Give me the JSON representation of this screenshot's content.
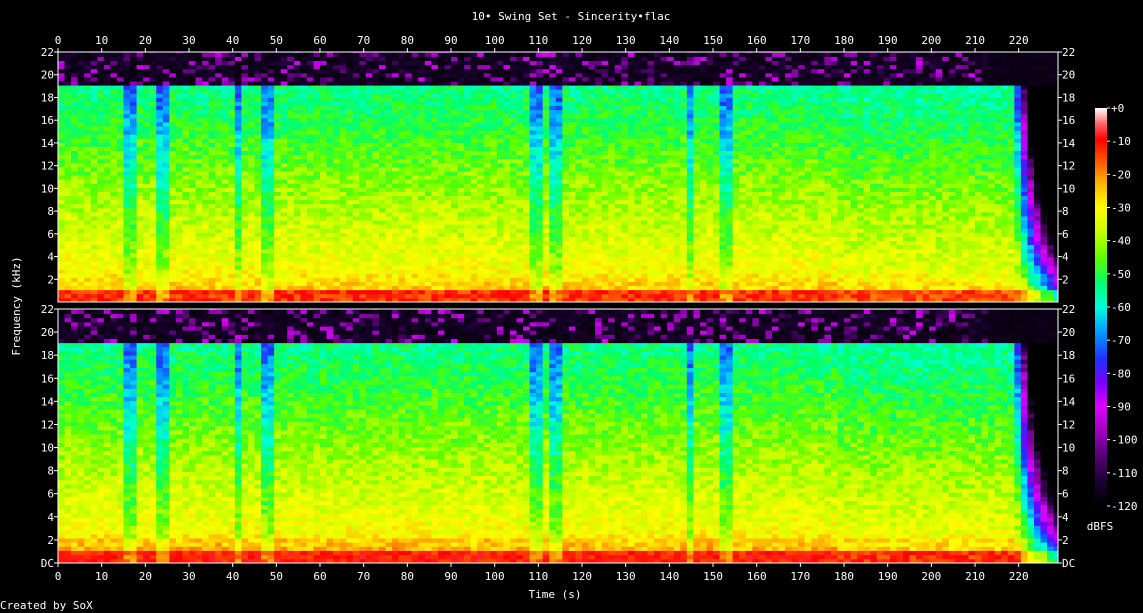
{
  "chart_data": {
    "type": "heatmap",
    "title": "10• Swing Set - Sincerity•flac",
    "xlabel": "Time (s)",
    "ylabel": "Frequency (kHz)",
    "xlim": [
      0,
      229
    ],
    "ylim": [
      0,
      22
    ],
    "x_ticks": [
      "0",
      "10",
      "20",
      "30",
      "40",
      "50",
      "60",
      "70",
      "80",
      "90",
      "100",
      "110",
      "120",
      "130",
      "140",
      "150",
      "160",
      "170",
      "180",
      "190",
      "200",
      "210",
      "220"
    ],
    "y_ticks": [
      "DC",
      "2",
      "4",
      "6",
      "8",
      "10",
      "12",
      "14",
      "16",
      "18",
      "20",
      "22"
    ],
    "channels": [
      "left",
      "right"
    ],
    "colorbar": {
      "label": "dBFS",
      "range": [
        -120,
        0
      ],
      "ticks": [
        "+0",
        "-10",
        "-20",
        "-30",
        "-40",
        "-50",
        "-60",
        "-70",
        "-80",
        "-90",
        "-100",
        "-110",
        "-120"
      ]
    },
    "footer": "Created by SoX"
  },
  "colors": {
    "background": "#000000",
    "axis": "#ffffff",
    "scale": [
      "#000000",
      "#1a0030",
      "#5a0078",
      "#a000c0",
      "#e000ff",
      "#7800ff",
      "#1e32ff",
      "#00a0ff",
      "#00ffdc",
      "#00ff6e",
      "#5aff00",
      "#c8ff00",
      "#ffff00",
      "#ffb400",
      "#ff5000",
      "#ff0000",
      "#ff6464",
      "#ffffff"
    ]
  }
}
